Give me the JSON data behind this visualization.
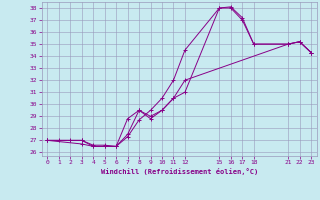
{
  "xlabel": "Windchill (Refroidissement éolien,°C)",
  "background_color": "#c8eaf0",
  "line_color": "#880088",
  "grid_color": "#9999bb",
  "xlim": [
    -0.5,
    23.5
  ],
  "ylim": [
    25.7,
    38.5
  ],
  "xtick_positions": [
    0,
    1,
    2,
    3,
    4,
    5,
    6,
    7,
    8,
    9,
    10,
    11,
    12,
    15,
    16,
    17,
    18,
    21,
    22,
    23
  ],
  "ytick_positions": [
    26,
    27,
    28,
    29,
    30,
    31,
    32,
    33,
    34,
    35,
    36,
    37,
    38
  ],
  "line1_x": [
    0,
    1,
    2,
    3,
    4,
    5,
    6,
    7,
    8,
    9,
    10,
    11,
    12,
    15,
    16,
    17,
    18,
    21,
    22,
    23
  ],
  "line1_y": [
    27.0,
    27.0,
    27.0,
    27.0,
    26.6,
    26.6,
    26.5,
    27.3,
    28.7,
    29.5,
    30.5,
    32.0,
    34.5,
    38.0,
    38.1,
    37.2,
    35.0,
    35.0,
    35.2,
    34.3
  ],
  "line2_x": [
    0,
    3,
    4,
    5,
    6,
    7,
    8,
    9,
    10,
    11,
    12,
    15,
    16,
    17,
    18,
    21,
    22,
    23
  ],
  "line2_y": [
    27.0,
    26.7,
    26.5,
    26.5,
    26.5,
    28.8,
    29.5,
    29.0,
    29.5,
    30.5,
    31.0,
    38.0,
    38.0,
    37.0,
    35.0,
    35.0,
    35.2,
    34.3
  ],
  "line3_x": [
    0,
    3,
    4,
    5,
    6,
    7,
    8,
    9,
    10,
    11,
    12,
    21,
    22,
    23
  ],
  "line3_y": [
    27.0,
    27.0,
    26.5,
    26.5,
    26.5,
    27.5,
    29.5,
    28.8,
    29.5,
    30.5,
    32.0,
    35.0,
    35.2,
    34.3
  ]
}
